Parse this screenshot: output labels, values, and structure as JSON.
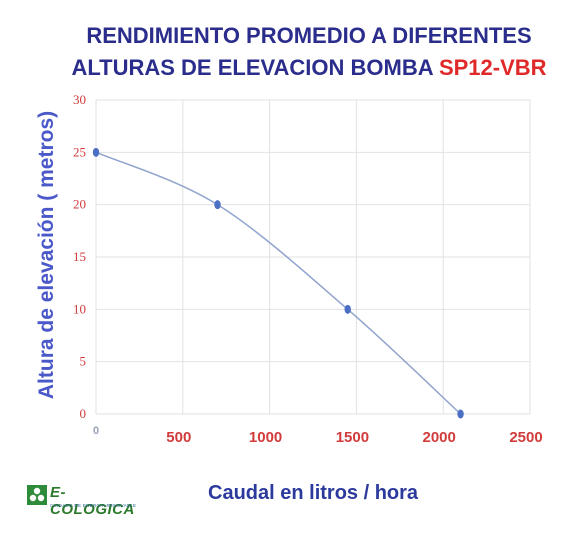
{
  "title": {
    "line1": "RENDIMIENTO PROMEDIO A DIFERENTES",
    "line2": "ALTURAS DE ELEVACION BOMBA",
    "model": "SP12-VBR"
  },
  "logo": {
    "name": "E-COLOGICA",
    "tagline": "CUIDADO DE ENERGIA RENOVABLE",
    "icon": "leaf-icon"
  },
  "chart_data": {
    "type": "line",
    "title": "RENDIMIENTO PROMEDIO A DIFERENTES ALTURAS DE ELEVACION BOMBA SP12-VBR",
    "xlabel": "Caudal en litros / hora",
    "ylabel": "Altura de elevación ( metros)",
    "xlim": [
      0,
      2500
    ],
    "ylim": [
      0,
      30
    ],
    "x_ticks": [
      "0",
      "500",
      "1000",
      "1500",
      "2000",
      "2500"
    ],
    "y_ticks": [
      "0",
      "5",
      "10",
      "15",
      "20",
      "25",
      "30"
    ],
    "grid": true,
    "series": [
      {
        "x": [
          0,
          700,
          1450,
          2100
        ],
        "y": [
          25,
          20,
          10,
          0
        ]
      }
    ],
    "colors": {
      "line": "#8fa3cc",
      "marker": "#4a6fc4",
      "tick": "#d23b3b",
      "grid": "#e2e2e2"
    }
  }
}
